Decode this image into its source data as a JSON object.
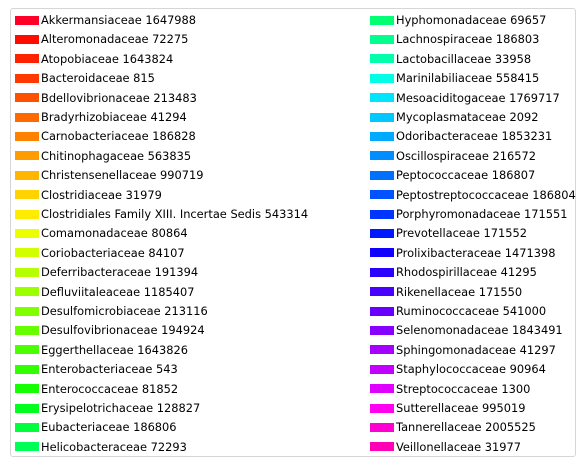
{
  "chart_data": {
    "type": "legend",
    "legend": {
      "columns": [
        [
          {
            "label": "Akkermansiaceae 1647988",
            "color": "#ff0029"
          },
          {
            "label": "Alteromonadaceae 72275",
            "color": "#ff0c00"
          },
          {
            "label": "Atopobiaceae 1643824",
            "color": "#ff2200"
          },
          {
            "label": "Bacteroidaceae 815",
            "color": "#ff3900"
          },
          {
            "label": "Bdellovibrionaceae 213483",
            "color": "#ff5000"
          },
          {
            "label": "Bradyrhizobiaceae 41294",
            "color": "#ff6a00"
          },
          {
            "label": "Carnobacteriaceae 186828",
            "color": "#ff8100"
          },
          {
            "label": "Chitinophagaceae 563835",
            "color": "#ff9c00"
          },
          {
            "label": "Christensenellaceae 990719",
            "color": "#ffb600"
          },
          {
            "label": "Clostridiaceae 31979",
            "color": "#ffd300"
          },
          {
            "label": "Clostridiales Family XIII. Incertae Sedis 543314",
            "color": "#ffec00"
          },
          {
            "label": "Comamonadaceae 80864",
            "color": "#ebff00"
          },
          {
            "label": "Coriobacteriaceae 84107",
            "color": "#d2ff00"
          },
          {
            "label": "Deferribacteraceae 191394",
            "color": "#b5ff00"
          },
          {
            "label": "Defluviitaleaceae 1185407",
            "color": "#9cff00"
          },
          {
            "label": "Desulfomicrobiaceae 213116",
            "color": "#80ff00"
          },
          {
            "label": "Desulfovibrionaceae 194924",
            "color": "#67ff00"
          },
          {
            "label": "Eggerthellaceae 1643826",
            "color": "#4aff00"
          },
          {
            "label": "Enterobacteriaceae 543",
            "color": "#30ff00"
          },
          {
            "label": "Enterococcaceae 81852",
            "color": "#16ff00"
          },
          {
            "label": "Erysipelotrichaceae 128827",
            "color": "#00ff1e"
          },
          {
            "label": "Eubacteriaceae 186806",
            "color": "#00ff3a"
          },
          {
            "label": "Helicobacteraceae 72293",
            "color": "#00ff56"
          }
        ],
        [
          {
            "label": "Hyphomonadaceae 69657",
            "color": "#00ff72"
          },
          {
            "label": "Lachnospiraceae 186803",
            "color": "#00ff8e"
          },
          {
            "label": "Lactobacillaceae 33958",
            "color": "#00ffaa"
          },
          {
            "label": "Marinilabiliaceae 558415",
            "color": "#00ffe6"
          },
          {
            "label": "Mesoaciditogaceae 1769717",
            "color": "#00e5ff"
          },
          {
            "label": "Mycoplasmataceae 2092",
            "color": "#00c7ff"
          },
          {
            "label": "Odoribacteraceae 1853231",
            "color": "#00aaff"
          },
          {
            "label": "Oscillospiraceae 216572",
            "color": "#008dff"
          },
          {
            "label": "Peptococcaceae 186807",
            "color": "#0070ff"
          },
          {
            "label": "Peptostreptococcaceae 186804",
            "color": "#0053ff"
          },
          {
            "label": "Porphyromonadaceae 171551",
            "color": "#0035ff"
          },
          {
            "label": "Prevotellaceae 171552",
            "color": "#0018ff"
          },
          {
            "label": "Prolixibacteraceae 1471398",
            "color": "#0f00ff"
          },
          {
            "label": "Rhodospirillaceae 41295",
            "color": "#2c00ff"
          },
          {
            "label": "Rikenellaceae 171550",
            "color": "#4a00ff"
          },
          {
            "label": "Ruminococcaceae 541000",
            "color": "#6800ff"
          },
          {
            "label": "Selenomonadaceae 1843491",
            "color": "#8600ff"
          },
          {
            "label": "Sphingomonadaceae 41297",
            "color": "#a400ff"
          },
          {
            "label": "Staphylococcaceae 90964",
            "color": "#c200ff"
          },
          {
            "label": "Streptococcaceae 1300",
            "color": "#e000ff"
          },
          {
            "label": "Sutterellaceae 995019",
            "color": "#ff00f1"
          },
          {
            "label": "Tannerellaceae 2005525",
            "color": "#ff00d3"
          },
          {
            "label": "Veillonellaceae 31977",
            "color": "#ff00b5"
          }
        ]
      ]
    }
  }
}
